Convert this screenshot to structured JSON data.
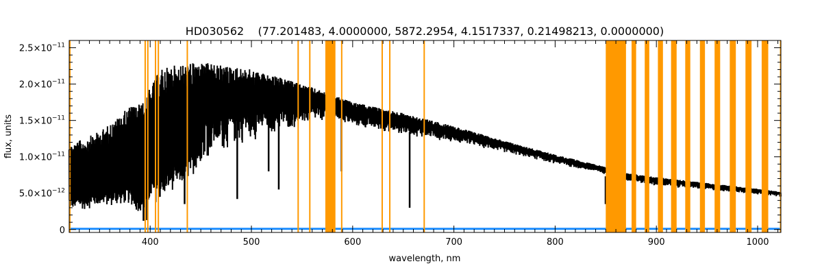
{
  "chart_data": {
    "type": "line",
    "title": "HD030562    (77.201483, 4.0000000, 5872.2954, 4.1517337, 0.21498213, 0.0000000)",
    "xlabel": "wavelength, nm",
    "ylabel": "flux, units",
    "xlim": [
      320,
      1023
    ],
    "ylim": [
      -4e-13,
      2.6e-11
    ],
    "grid": false,
    "x_ticks": [
      {
        "value": 400,
        "label": "400"
      },
      {
        "value": 500,
        "label": "500"
      },
      {
        "value": 600,
        "label": "600"
      },
      {
        "value": 700,
        "label": "700"
      },
      {
        "value": 800,
        "label": "800"
      },
      {
        "value": 900,
        "label": "900"
      },
      {
        "value": 1000,
        "label": "1000"
      }
    ],
    "y_ticks": [
      {
        "value": 0,
        "mantissa": "0",
        "exp": ""
      },
      {
        "value": 5e-12,
        "mantissa": "5.0×10",
        "exp": "−12"
      },
      {
        "value": 1e-11,
        "mantissa": "1.0×10",
        "exp": "−11"
      },
      {
        "value": 1.5e-11,
        "mantissa": "1.5×10",
        "exp": "−11"
      },
      {
        "value": 2e-11,
        "mantissa": "2.0×10",
        "exp": "−11"
      },
      {
        "value": 2.5e-11,
        "mantissa": "2.5×10",
        "exp": "−11"
      }
    ],
    "series": [
      {
        "name": "flux",
        "color": "#000000",
        "wavelength": [
          320,
          335,
          350,
          365,
          380,
          393,
          400,
          410,
          420,
          435,
          450,
          475,
          500,
          525,
          550,
          575,
          580,
          600,
          650,
          700,
          750,
          800,
          850,
          870,
          900,
          950,
          1000,
          1023
        ],
        "upper": [
          1.17e-11,
          1.25e-11,
          1.35e-11,
          1.5e-11,
          1.7e-11,
          1.75e-11,
          1.95e-11,
          2.2e-11,
          2.25e-11,
          2.28e-11,
          2.3e-11,
          2.25e-11,
          2.2e-11,
          2.1e-11,
          2e-11,
          1.88e-11,
          1.85e-11,
          1.75e-11,
          1.6e-11,
          1.42e-11,
          1.22e-11,
          1.03e-11,
          8.6e-12,
          7.8e-12,
          7.2e-12,
          6.4e-12,
          5.6e-12,
          5.2e-12
        ],
        "lower": [
          2.5e-12,
          2.6e-12,
          3e-12,
          3e-12,
          3.2e-12,
          1.5e-12,
          3.5e-12,
          3.5e-12,
          5e-12,
          6e-12,
          9e-12,
          1.05e-11,
          1.2e-11,
          1.3e-11,
          1.4e-11,
          1.5e-11,
          1.5e-11,
          1.4e-11,
          1.3e-11,
          1.2e-11,
          1.05e-11,
          9e-12,
          7.5e-12,
          6.6e-12,
          6e-12,
          5.4e-12,
          4.8e-12,
          4.5e-12
        ],
        "deep_lines": [
          {
            "wavelength": 393.4,
            "flux": 1.2e-12
          },
          {
            "wavelength": 396.8,
            "flux": 1.3e-12
          },
          {
            "wavelength": 434,
            "flux": 3.5e-12
          },
          {
            "wavelength": 486,
            "flux": 4.2e-12
          },
          {
            "wavelength": 517,
            "flux": 8e-12
          },
          {
            "wavelength": 527,
            "flux": 5.5e-12
          },
          {
            "wavelength": 589,
            "flux": 8e-12
          },
          {
            "wavelength": 656.3,
            "flux": 3e-12
          },
          {
            "wavelength": 849.8,
            "flux": 3.5e-12
          },
          {
            "wavelength": 854.2,
            "flux": 4.6e-12
          },
          {
            "wavelength": 866.2,
            "flux": 5e-12
          }
        ]
      },
      {
        "name": "error",
        "color": "#1a8cff",
        "wavelength": [
          320,
          1023
        ],
        "value": [
          1e-13,
          1e-13
        ]
      }
    ],
    "masked_regions": {
      "color": "#ff9900",
      "ranges": [
        [
          320,
          321
        ],
        [
          394.4,
          395.4
        ],
        [
          397,
          398
        ],
        [
          404.6,
          405.8
        ],
        [
          407.4,
          408.4
        ],
        [
          436,
          437.3
        ],
        [
          545.5,
          546.5
        ],
        [
          557,
          558
        ],
        [
          573,
          583
        ],
        [
          588.5,
          589.6
        ],
        [
          628.5,
          629.5
        ],
        [
          636,
          637
        ],
        [
          670,
          671
        ],
        [
          850,
          870
        ],
        [
          875.5,
          880
        ],
        [
          888.5,
          893
        ],
        [
          901.5,
          906.5
        ],
        [
          914.5,
          920
        ],
        [
          928.5,
          933.5
        ],
        [
          943,
          948
        ],
        [
          957.5,
          963
        ],
        [
          972.5,
          978.5
        ],
        [
          988,
          994
        ],
        [
          1004,
          1010.5
        ],
        [
          1022,
          1023
        ]
      ]
    }
  }
}
